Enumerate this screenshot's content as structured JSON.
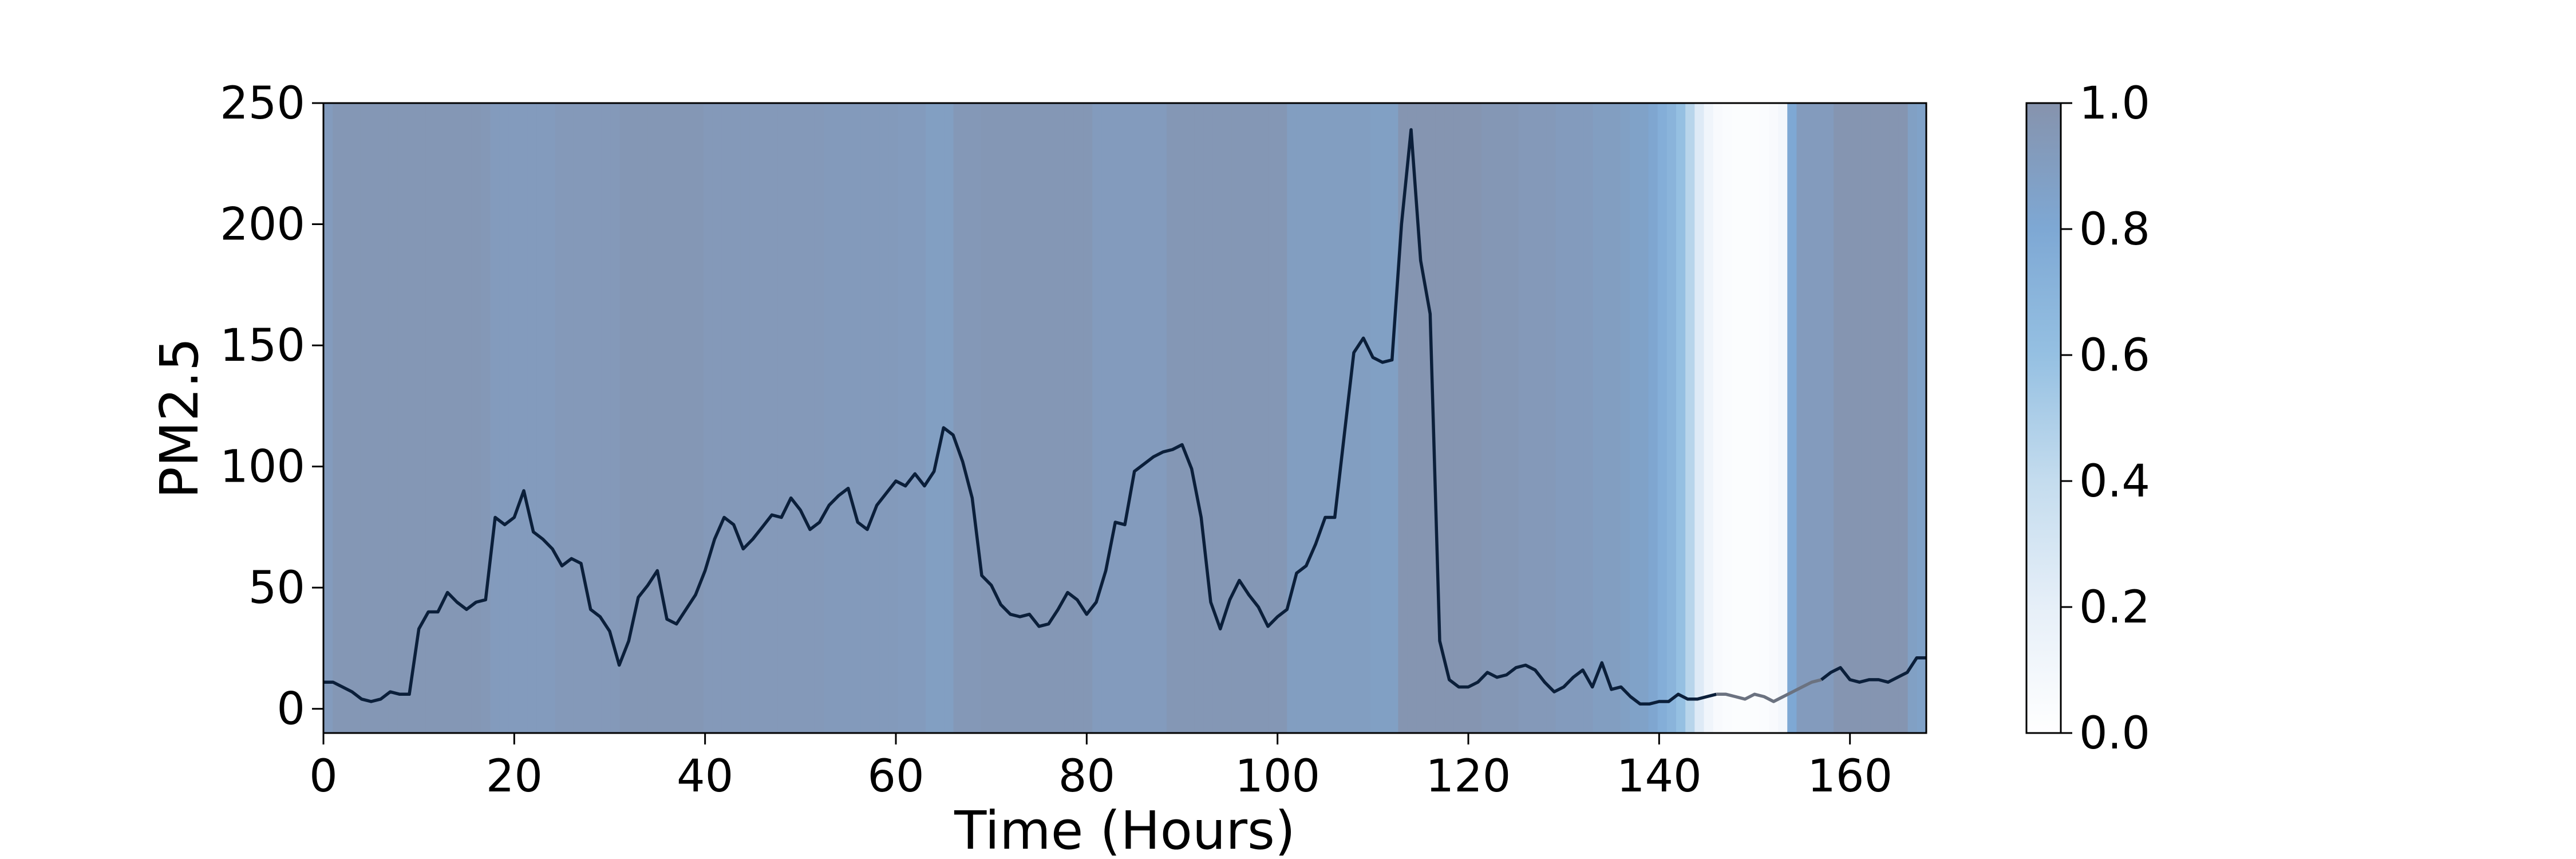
{
  "chart_data": {
    "type": "line",
    "title": "",
    "xlabel": "Time (Hours)",
    "ylabel": "PM2.5",
    "xlim": [
      0,
      168
    ],
    "ylim": [
      -10,
      250
    ],
    "xticks": [
      0,
      20,
      40,
      60,
      80,
      100,
      120,
      140,
      160
    ],
    "yticks": [
      0,
      50,
      100,
      150,
      200,
      250
    ],
    "grid": false,
    "legend": "none",
    "line_color": "#0b1f3a",
    "faded_line_color": "#6b7280",
    "series": [
      {
        "values": [
          11,
          11,
          9,
          7,
          4,
          3,
          4,
          7,
          6,
          6,
          33,
          40,
          40,
          48,
          44,
          41,
          44,
          45,
          79,
          76,
          79,
          90,
          73,
          70,
          66,
          59,
          62,
          60,
          41,
          38,
          32,
          18,
          28,
          46,
          51,
          57,
          37,
          35,
          41,
          47,
          57,
          70,
          79,
          76,
          66,
          70,
          75,
          80,
          79,
          87,
          82,
          74,
          77,
          84,
          88,
          91,
          77,
          74,
          84,
          89,
          94,
          92,
          97,
          92,
          98,
          116,
          113,
          102,
          87,
          55,
          51,
          43,
          39,
          38,
          39,
          34,
          35,
          41,
          48,
          45,
          39,
          44,
          57,
          77,
          76,
          98,
          101,
          104,
          106,
          107,
          109,
          99,
          79,
          44,
          33,
          45,
          53,
          47,
          42,
          34,
          38,
          41,
          56,
          59,
          68,
          79,
          79,
          113,
          147,
          153,
          145,
          143,
          144,
          200,
          239,
          185,
          163,
          28,
          12,
          9,
          9,
          11,
          15,
          13,
          14,
          17,
          18,
          16,
          11,
          7,
          9,
          13,
          16,
          9,
          19,
          8,
          9,
          5,
          2,
          2,
          3,
          3,
          6,
          4,
          4,
          5,
          6,
          6,
          5,
          4,
          6,
          5,
          3,
          5,
          7,
          9,
          11,
          12,
          15,
          17,
          12,
          11,
          12,
          12,
          11,
          13,
          15,
          21,
          21
        ]
      }
    ],
    "faded_range": [
      146,
      157
    ],
    "colorbar": {
      "ticks": [
        "0.0",
        "0.2",
        "0.4",
        "0.6",
        "0.8",
        "1.0"
      ],
      "range": [
        0,
        1
      ]
    },
    "background_weights": [
      0.92,
      0.96,
      0.96,
      0.96,
      0.96,
      0.96,
      0.96,
      0.96,
      0.96,
      0.96,
      0.96,
      0.96,
      0.96,
      0.96,
      0.96,
      0.96,
      0.96,
      0.95,
      0.92,
      0.92,
      0.92,
      0.92,
      0.92,
      0.92,
      0.92,
      0.94,
      0.94,
      0.94,
      0.94,
      0.94,
      0.94,
      0.94,
      0.96,
      0.96,
      0.96,
      0.96,
      0.96,
      0.96,
      0.96,
      0.96,
      0.96,
      0.94,
      0.94,
      0.94,
      0.94,
      0.94,
      0.94,
      0.94,
      0.94,
      0.94,
      0.94,
      0.94,
      0.94,
      0.94,
      0.93,
      0.93,
      0.93,
      0.93,
      0.93,
      0.93,
      0.93,
      0.93,
      0.92,
      0.92,
      0.92,
      0.89,
      0.89,
      0.89,
      0.95,
      0.95,
      0.95,
      0.96,
      0.96,
      0.96,
      0.96,
      0.96,
      0.96,
      0.96,
      0.96,
      0.96,
      0.96,
      0.96,
      0.96,
      0.92,
      0.92,
      0.92,
      0.92,
      0.92,
      0.92,
      0.92,
      0.92,
      0.96,
      0.96,
      0.96,
      0.96,
      0.96,
      0.96,
      0.96,
      0.96,
      0.96,
      0.96,
      0.96,
      0.96,
      0.96,
      0.9,
      0.9,
      0.9,
      0.9,
      0.9,
      0.9,
      0.9,
      0.9,
      0.9,
      0.88,
      0.88,
      0.88,
      0.98,
      0.98,
      0.98,
      0.98,
      0.98,
      0.98,
      0.98,
      0.98,
      0.98,
      0.96,
      0.96,
      0.96,
      0.96,
      0.94,
      0.94,
      0.94,
      0.94,
      0.92,
      0.92,
      0.92,
      0.92,
      0.9,
      0.9,
      0.9,
      0.88,
      0.86,
      0.86,
      0.82,
      0.75,
      0.7,
      0.6,
      0.45,
      0.25,
      0.12,
      0.06,
      0.04,
      0.03,
      0.03,
      0.03,
      0.04,
      0.06,
      0.1,
      0.8,
      0.92,
      0.92,
      0.92,
      0.92,
      0.98,
      0.98,
      0.98,
      0.98,
      0.98,
      0.98,
      0.98,
      0.98,
      0.88,
      0.86
    ]
  }
}
